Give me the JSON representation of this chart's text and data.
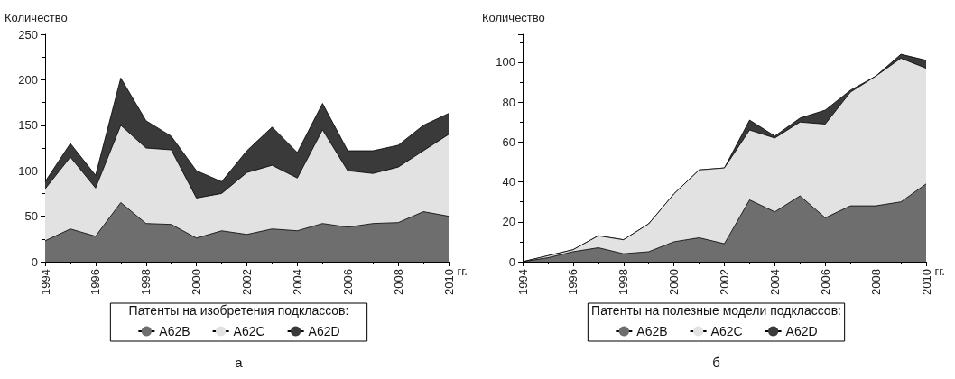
{
  "chart_data": [
    {
      "type": "area",
      "stacked": true,
      "xlabel": "гг.",
      "ylabel": "Количество",
      "legend_title": "Патенты на изобретения подклассов:",
      "legend": "bottom",
      "marker": "none",
      "annotations": [
        "а"
      ],
      "x": [
        1994,
        1995,
        1996,
        1997,
        1998,
        1999,
        2000,
        2001,
        2002,
        2003,
        2004,
        2005,
        2006,
        2007,
        2008,
        2009,
        2010
      ],
      "xlim": [
        1994,
        2010
      ],
      "xticks": [
        1994,
        1996,
        1998,
        2000,
        2002,
        2004,
        2006,
        2008,
        2010
      ],
      "ylim": [
        0,
        250
      ],
      "yticks": [
        0,
        50,
        100,
        150,
        200,
        250
      ],
      "series": [
        {
          "name": "A62B",
          "color": "#6e6e6e",
          "values": [
            23,
            36,
            28,
            65,
            42,
            41,
            26,
            34,
            30,
            36,
            34,
            42,
            38,
            42,
            43,
            55,
            50
          ]
        },
        {
          "name": "A62C",
          "color": "#e2e2e2",
          "values": [
            57,
            79,
            53,
            85,
            83,
            82,
            44,
            41,
            68,
            70,
            58,
            103,
            62,
            55,
            61,
            67,
            90
          ]
        },
        {
          "name": "A62D",
          "color": "#3a3a3a",
          "values": [
            8,
            15,
            14,
            52,
            30,
            15,
            30,
            13,
            24,
            42,
            28,
            29,
            22,
            25,
            24,
            28,
            23
          ]
        }
      ]
    },
    {
      "type": "area",
      "stacked": true,
      "xlabel": "гг.",
      "ylabel": "Количество",
      "legend_title": "Патенты на полезные модели подклассов:",
      "legend": "bottom",
      "marker": "none",
      "annotations": [
        "б"
      ],
      "x": [
        1994,
        1995,
        1996,
        1997,
        1998,
        1999,
        2000,
        2001,
        2002,
        2003,
        2004,
        2005,
        2006,
        2007,
        2008,
        2009,
        2010
      ],
      "xlim": [
        1994,
        2010
      ],
      "xticks": [
        1994,
        1996,
        1998,
        2000,
        2002,
        2004,
        2006,
        2008,
        2010
      ],
      "ylim": [
        0,
        114
      ],
      "yticks": [
        0,
        20,
        40,
        60,
        80,
        100
      ],
      "series": [
        {
          "name": "A62B",
          "color": "#6e6e6e",
          "values": [
            0,
            2,
            5,
            7,
            4,
            5,
            10,
            12,
            9,
            31,
            25,
            33,
            22,
            28,
            28,
            30,
            39
          ]
        },
        {
          "name": "A62C",
          "color": "#e2e2e2",
          "values": [
            0,
            1,
            1,
            6,
            7,
            14,
            24,
            34,
            38,
            35,
            37,
            37,
            47,
            57,
            65,
            72,
            58
          ]
        },
        {
          "name": "A62D",
          "color": "#3a3a3a",
          "values": [
            0,
            0,
            0,
            0,
            0,
            0,
            0,
            0,
            0,
            5,
            1,
            2,
            7,
            1,
            0,
            2,
            4
          ]
        }
      ]
    }
  ]
}
